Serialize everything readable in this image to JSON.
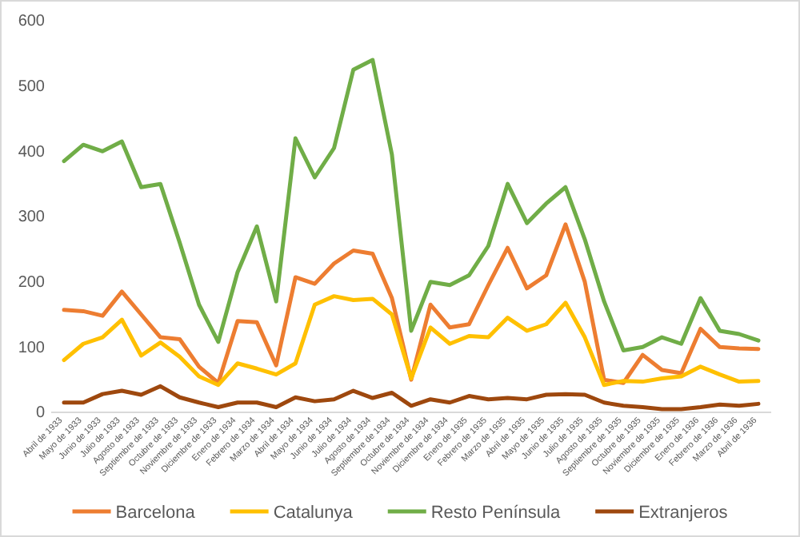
{
  "chart_data": {
    "type": "line",
    "categories": [
      "Abril de 1933",
      "Mayo de 1933",
      "Junio de 1933",
      "Julio de 1933",
      "Agosto de 1933",
      "Septiembre de 1933",
      "Octubre de 1933",
      "Noviembre de 1933",
      "Diciembre de 1933",
      "Enero de 1934",
      "Febrero de 1934",
      "Marzo de 1934",
      "Abril de 1934",
      "Mayo de 1934",
      "Junio de 1934",
      "Julio de 1934",
      "Agosto de 1934",
      "Septiembre de 1934",
      "Octubre de 1934",
      "Noviembre de 1934",
      "Diciembre de 1934",
      "Enero de 1935",
      "Febrero de 1935",
      "Marzo de 1935",
      "Abril de 1935",
      "Mayo de 1935",
      "Junio de 1935",
      "Julio de 1935",
      "Agosto de 1935",
      "Septiembre de 1935",
      "Octubre de 1935",
      "Noviembre de 1935",
      "Diciembre de 1935",
      "Enero de 1936",
      "Febrero de 1936",
      "Marzo de 1936",
      "Abril de 1936"
    ],
    "series": [
      {
        "name": "Barcelona",
        "color": "#ed7d31",
        "values": [
          157,
          155,
          148,
          185,
          150,
          115,
          112,
          70,
          45,
          140,
          138,
          72,
          207,
          197,
          228,
          248,
          243,
          175,
          50,
          165,
          130,
          135,
          195,
          252,
          190,
          210,
          288,
          200,
          50,
          45,
          88,
          65,
          60,
          128,
          100,
          98,
          97
        ]
      },
      {
        "name": "Catalunya",
        "color": "#ffc000",
        "values": [
          80,
          105,
          115,
          142,
          87,
          107,
          85,
          55,
          42,
          75,
          67,
          58,
          75,
          165,
          178,
          172,
          174,
          150,
          52,
          130,
          105,
          117,
          115,
          145,
          125,
          135,
          168,
          115,
          42,
          48,
          47,
          52,
          55,
          70,
          58,
          47,
          48
        ]
      },
      {
        "name": "Resto Península",
        "color": "#70ad47",
        "values": [
          385,
          410,
          400,
          415,
          345,
          350,
          260,
          165,
          108,
          215,
          285,
          170,
          420,
          360,
          405,
          525,
          540,
          395,
          125,
          200,
          195,
          210,
          255,
          350,
          290,
          320,
          345,
          265,
          170,
          95,
          100,
          115,
          105,
          175,
          125,
          120,
          110
        ]
      },
      {
        "name": "Extranjeros",
        "color": "#9e480e",
        "values": [
          15,
          15,
          28,
          33,
          27,
          40,
          23,
          15,
          8,
          15,
          15,
          8,
          23,
          17,
          20,
          33,
          22,
          30,
          10,
          20,
          15,
          25,
          20,
          22,
          20,
          27,
          28,
          27,
          15,
          10,
          8,
          5,
          5,
          8,
          12,
          10,
          13
        ]
      }
    ],
    "ylim": [
      0,
      600
    ],
    "yticks": [
      0,
      100,
      200,
      300,
      400,
      500,
      600
    ],
    "grid": false,
    "legend": "bottom",
    "marker": "none",
    "line_style": "solid"
  }
}
